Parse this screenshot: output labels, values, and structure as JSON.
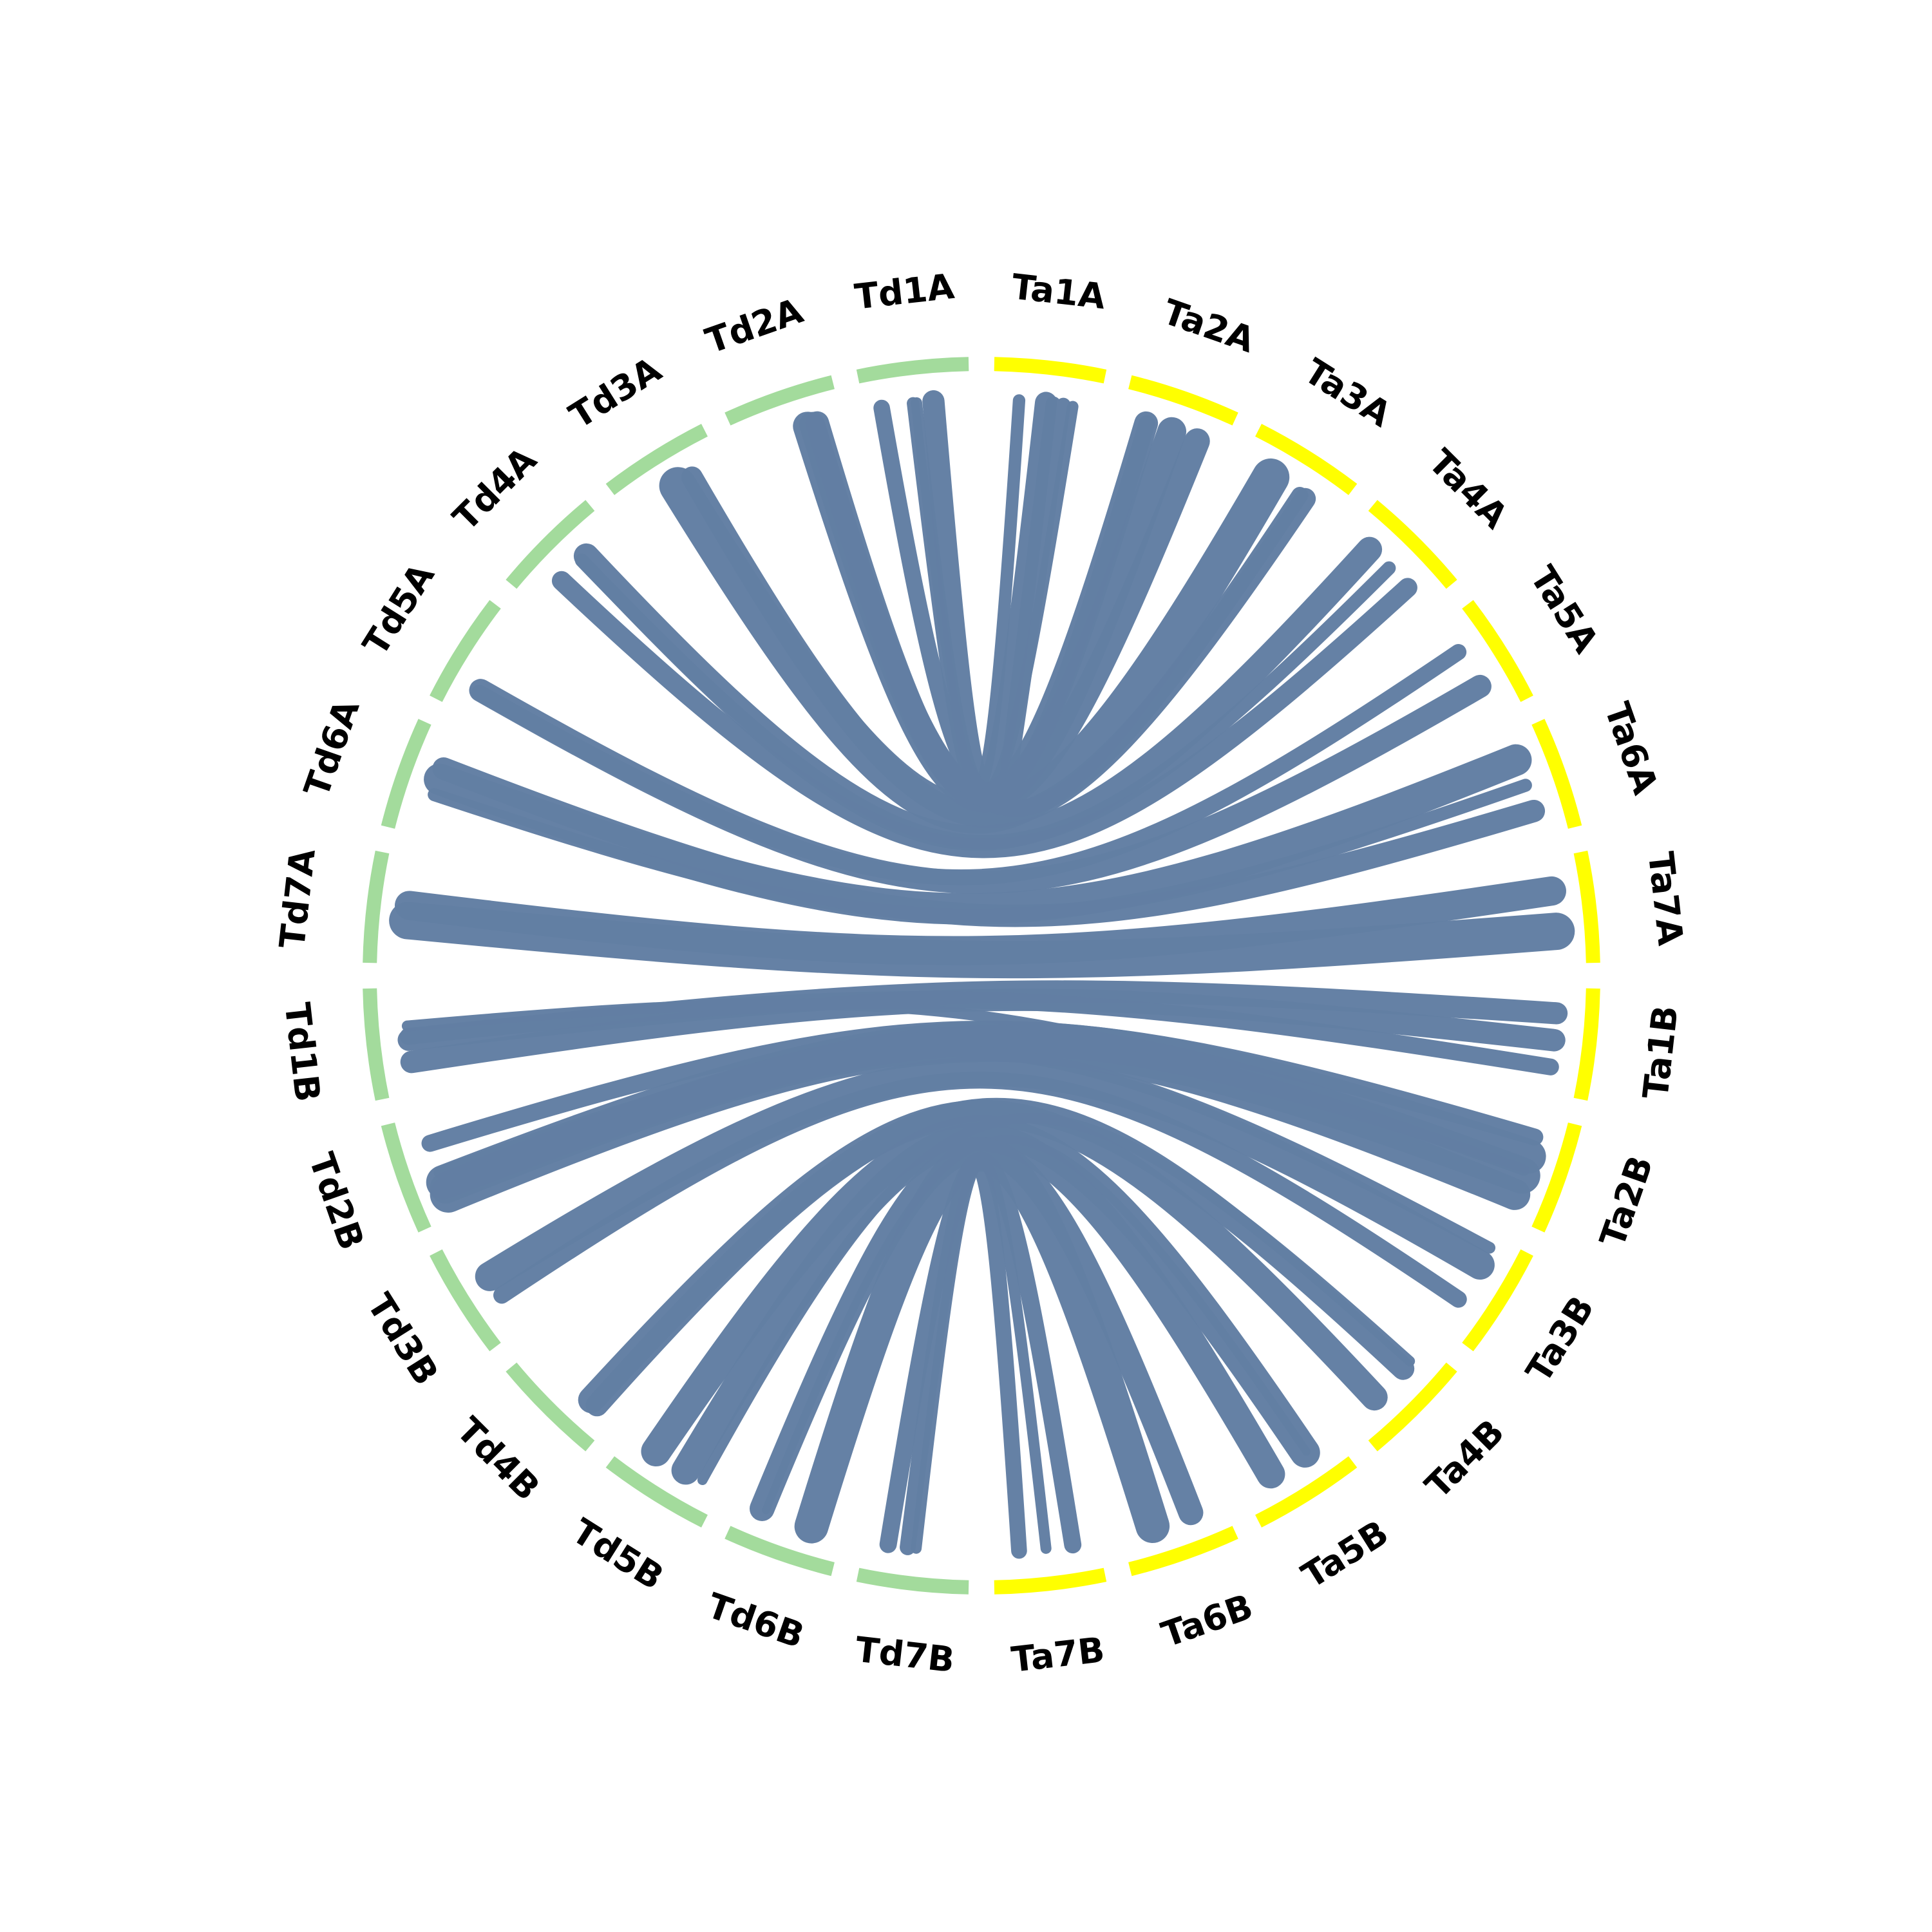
{
  "segments": [
    {
      "label": "Ta1A",
      "color": "#ffff00"
    },
    {
      "label": "Ta2A",
      "color": "#ffff00"
    },
    {
      "label": "Ta3A",
      "color": "#ffff00"
    },
    {
      "label": "Ta4A",
      "color": "#ffff00"
    },
    {
      "label": "Ta5A",
      "color": "#ffff00"
    },
    {
      "label": "Ta6A",
      "color": "#ffff00"
    },
    {
      "label": "Ta7A",
      "color": "#ffff00"
    },
    {
      "label": "Ta1B",
      "color": "#ffff00"
    },
    {
      "label": "Ta2B",
      "color": "#ffff00"
    },
    {
      "label": "Ta3B",
      "color": "#ffff00"
    },
    {
      "label": "Ta4B",
      "color": "#ffff00"
    },
    {
      "label": "Ta5B",
      "color": "#ffff00"
    },
    {
      "label": "Ta6B",
      "color": "#ffff00"
    },
    {
      "label": "Ta7B",
      "color": "#ffff00"
    },
    {
      "label": "Td7B",
      "color": "#a3db9c"
    },
    {
      "label": "Td6B",
      "color": "#a3db9c"
    },
    {
      "label": "Td5B",
      "color": "#a3db9c"
    },
    {
      "label": "Td4B",
      "color": "#a3db9c"
    },
    {
      "label": "Td3B",
      "color": "#a3db9c"
    },
    {
      "label": "Td2B",
      "color": "#a3db9c"
    },
    {
      "label": "Td1B",
      "color": "#a3db9c"
    },
    {
      "label": "Td7A",
      "color": "#a3db9c"
    },
    {
      "label": "Td6A",
      "color": "#a3db9c"
    },
    {
      "label": "Td5A",
      "color": "#a3db9c"
    },
    {
      "label": "Td4A",
      "color": "#a3db9c"
    },
    {
      "label": "Td3A",
      "color": "#a3db9c"
    },
    {
      "label": "Td2A",
      "color": "#a3db9c"
    },
    {
      "label": "Td1A",
      "color": "#a3db9c"
    }
  ]
}
